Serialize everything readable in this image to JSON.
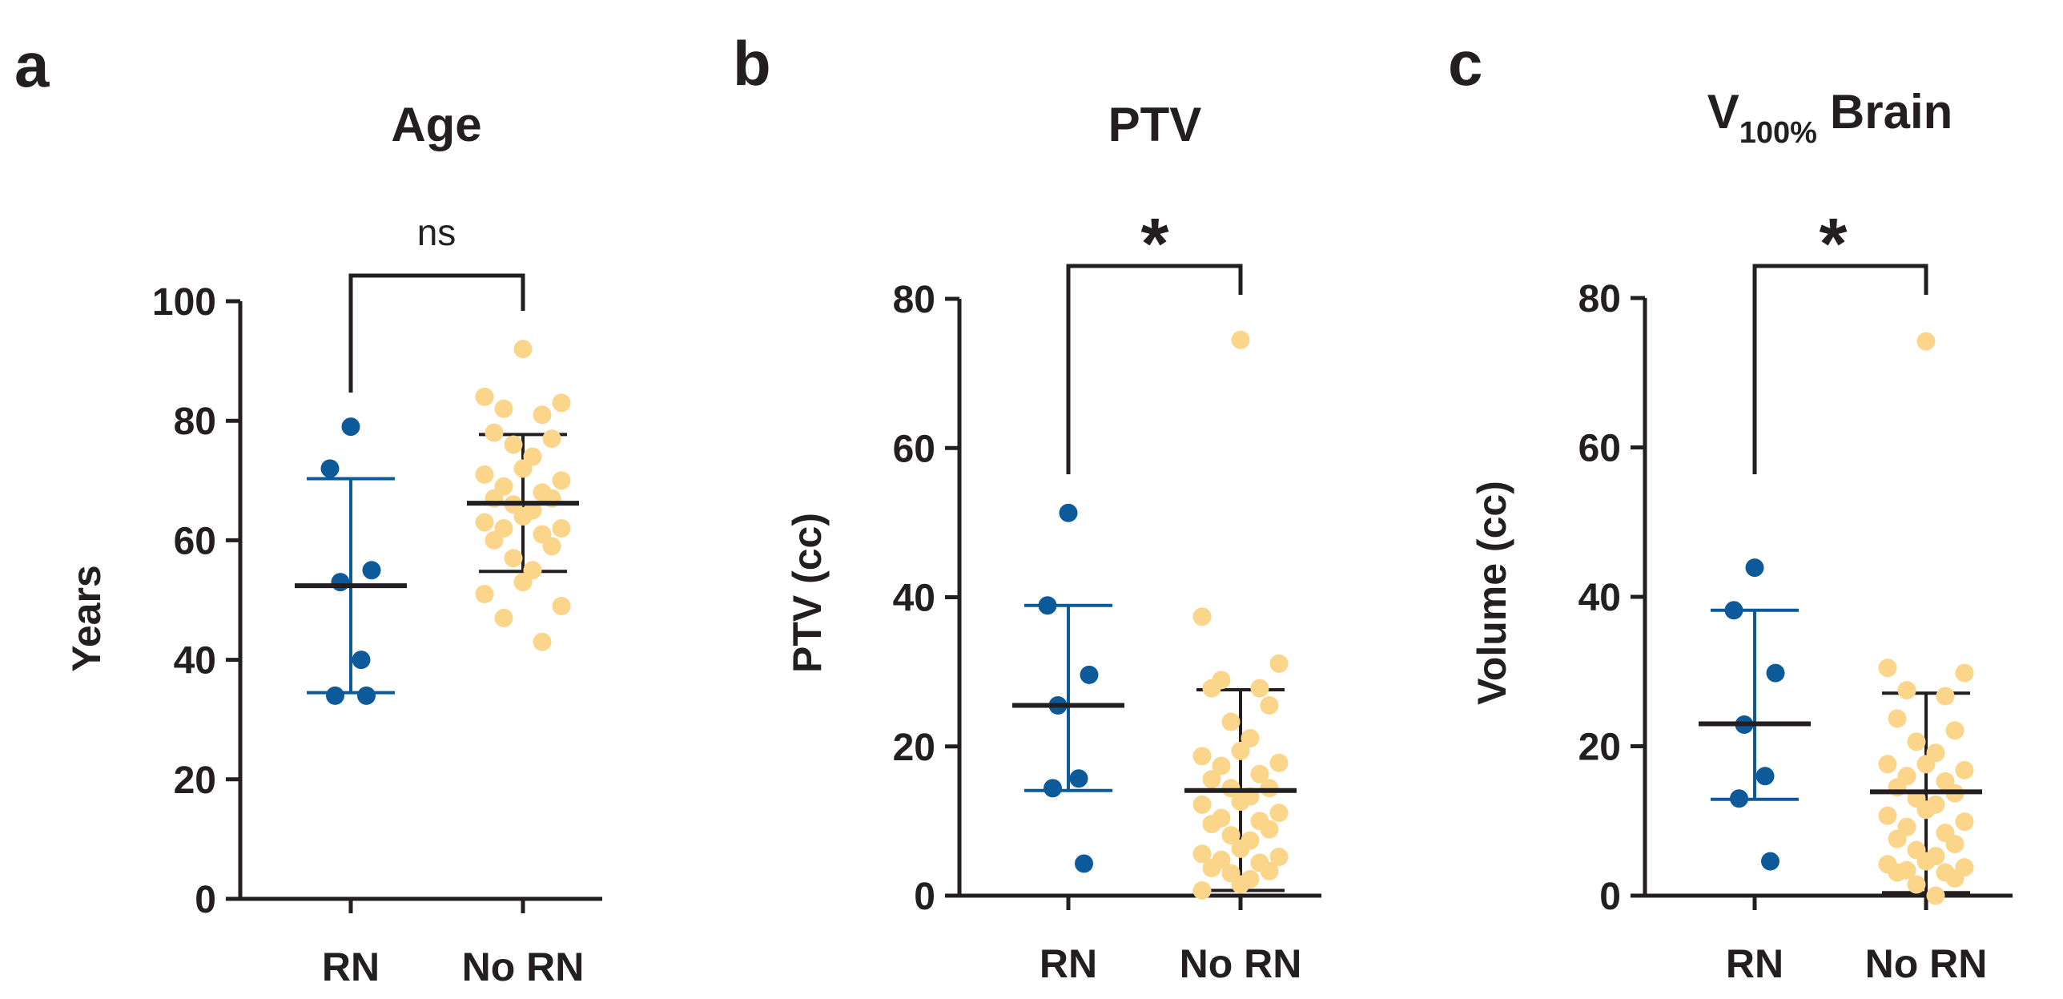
{
  "colors": {
    "rn": "#0d5a9a",
    "no_rn": "#fbd58a",
    "axis": "#231f20",
    "mean_line": "#231f20"
  },
  "chart_data": [
    {
      "type": "scatter",
      "panel": "a",
      "title": "Age",
      "title_sub": "",
      "title_suffix": "",
      "ylabel": "Years",
      "ylim": [
        0,
        100
      ],
      "yticks": [
        0,
        20,
        40,
        60,
        80,
        100
      ],
      "categories": [
        "RN",
        "No RN"
      ],
      "significance": "ns",
      "series": [
        {
          "name": "RN",
          "color": "#0d5a9a",
          "values": [
            79,
            72,
            55,
            53,
            40,
            34,
            34
          ],
          "mean": 52.4,
          "sd": [
            34.5,
            70.3
          ]
        },
        {
          "name": "No RN",
          "color": "#fbd58a",
          "values": [
            92,
            84,
            83,
            82,
            81,
            78,
            77,
            76,
            74,
            72,
            71,
            70,
            69,
            68,
            67,
            67,
            66,
            65,
            64,
            63,
            62,
            62,
            61,
            60,
            59,
            57,
            55,
            53,
            51,
            49,
            47,
            43
          ],
          "mean": 66.2,
          "sd": [
            54.8,
            77.7
          ]
        }
      ]
    },
    {
      "type": "scatter",
      "panel": "b",
      "title": "PTV",
      "title_sub": "",
      "title_suffix": "",
      "ylabel": "PTV (cc)",
      "ylim": [
        0,
        80
      ],
      "yticks": [
        0,
        20,
        40,
        60,
        80
      ],
      "categories": [
        "RN",
        "No RN"
      ],
      "significance": "*",
      "series": [
        {
          "name": "RN",
          "color": "#0d5a9a",
          "values": [
            51.3,
            38.9,
            29.6,
            25.5,
            15.7,
            14.4,
            4.3
          ],
          "mean": 25.5,
          "sd": [
            14.1,
            38.9
          ]
        },
        {
          "name": "No RN",
          "color": "#fbd58a",
          "values": [
            74.5,
            37.4,
            31.1,
            28.9,
            27.8,
            27.8,
            25.5,
            23.3,
            21.1,
            19.4,
            18.7,
            17.8,
            17.4,
            16.3,
            15.6,
            14.4,
            14.4,
            13.3,
            12.6,
            12.2,
            11.1,
            10.4,
            10.0,
            9.6,
            8.9,
            8.1,
            7.4,
            6.3,
            5.6,
            5.2,
            4.8,
            4.4,
            3.7,
            3.3,
            3.0,
            2.2,
            1.5,
            0.7
          ],
          "mean": 14.1,
          "sd": [
            0.7,
            27.6
          ]
        }
      ]
    },
    {
      "type": "scatter",
      "panel": "c",
      "title": "V",
      "title_sub": "100%",
      "title_suffix": "Brain",
      "ylabel": "Volume (cc)",
      "ylim": [
        0,
        80
      ],
      "yticks": [
        0,
        20,
        40,
        60,
        80
      ],
      "categories": [
        "RN",
        "No RN"
      ],
      "significance": "*",
      "series": [
        {
          "name": "RN",
          "color": "#0d5a9a",
          "values": [
            43.9,
            38.2,
            29.8,
            22.9,
            16.0,
            13.0,
            4.6
          ],
          "mean": 23.0,
          "sd": [
            12.9,
            38.2
          ]
        },
        {
          "name": "No RN",
          "color": "#fbd58a",
          "values": [
            74.2,
            30.5,
            29.8,
            27.5,
            26.7,
            23.7,
            22.1,
            20.6,
            19.1,
            17.6,
            17.6,
            16.8,
            16.0,
            15.3,
            14.5,
            13.7,
            13.0,
            12.2,
            11.5,
            10.7,
            9.9,
            9.2,
            8.4,
            7.6,
            6.9,
            6.1,
            5.3,
            4.6,
            4.2,
            3.8,
            3.4,
            3.1,
            3.1,
            2.3,
            1.5,
            0.0
          ],
          "mean": 13.9,
          "sd": [
            0.4,
            27.1
          ]
        }
      ]
    }
  ]
}
